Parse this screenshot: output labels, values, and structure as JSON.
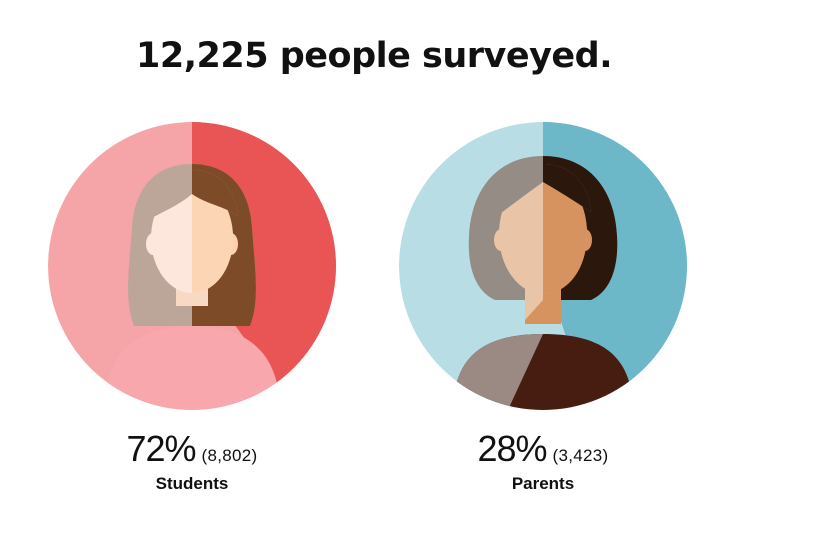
{
  "title": "12,225 people surveyed.",
  "chart_data": {
    "type": "pie",
    "total": 12225,
    "groups": [
      {
        "label": "Students",
        "percent": 72,
        "percent_text": "72%",
        "count_text": "(8,802)",
        "count": 8802,
        "highlight_fraction": 0.4,
        "colors": {
          "light": "#F5A4A8",
          "dark": "#E95455",
          "hair_light": "#BCA699",
          "hair_dark": "#7D4B27",
          "skin_light": "#FDE7DC",
          "skin_dark": "#FBD1AE",
          "shirt_light": "#F8A8AC",
          "neck": "#F7D9C4"
        }
      },
      {
        "label": "Parents",
        "percent": 28,
        "percent_text": "28%",
        "count_text": "(3,423)",
        "count": 3423,
        "highlight_fraction": 0.45,
        "colors": {
          "light": "#B8DDE5",
          "dark": "#6CB7C8",
          "hair_light": "#968C86",
          "hair_dark": "#2C170C",
          "skin_light": "#E9C4A6",
          "skin_dark": "#D69360",
          "shirt_light": "#9A8A83",
          "shirt_dark": "#471D11"
        }
      }
    ]
  }
}
